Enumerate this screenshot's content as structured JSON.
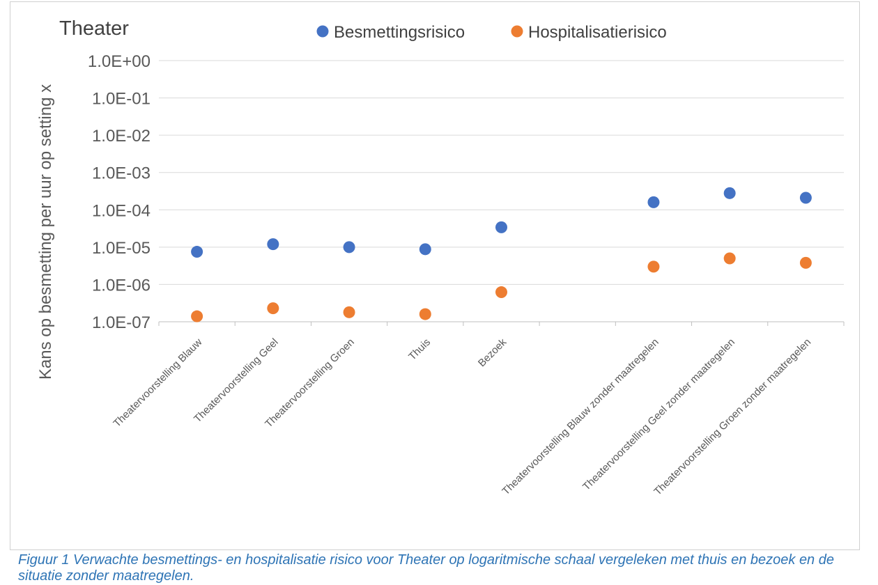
{
  "chart_data": {
    "type": "scatter",
    "title": "Theater",
    "ylabel": "Kans op besmetting per uur op setting x",
    "xlabel": "",
    "yscale": "log",
    "ylim": [
      1e-07,
      1
    ],
    "yticks": [
      {
        "value": 1,
        "label": "1.0E+00"
      },
      {
        "value": 0.1,
        "label": "1.0E-01"
      },
      {
        "value": 0.01,
        "label": "1.0E-02"
      },
      {
        "value": 0.001,
        "label": "1.0E-03"
      },
      {
        "value": 0.0001,
        "label": "1.0E-04"
      },
      {
        "value": 1e-05,
        "label": "1.0E-05"
      },
      {
        "value": 1e-06,
        "label": "1.0E-06"
      },
      {
        "value": 1e-07,
        "label": "1.0E-07"
      }
    ],
    "categories": [
      "Theatervoorstelling Blauw",
      "Theatervoorstelling Geel",
      "Theatervoorstelling Groen",
      "Thuis",
      "Bezoek",
      "",
      "Theatervoorstelling Blauw zonder maatregelen",
      "Theatervoorstelling Geel zonder maatregelen",
      "Theatervoorstelling Groen zonder maatregelen"
    ],
    "grid": true,
    "legend_position": "top",
    "series": [
      {
        "name": "Besmettingsrisico",
        "color": "#4472c4",
        "values": [
          7.5e-06,
          1.2e-05,
          1e-05,
          8.8e-06,
          3.4e-05,
          null,
          0.00016,
          0.00028,
          0.00021
        ]
      },
      {
        "name": "Hospitalisatierisico",
        "color": "#ed7d31",
        "values": [
          1.4e-07,
          2.3e-07,
          1.8e-07,
          1.6e-07,
          6.2e-07,
          null,
          3e-06,
          5e-06,
          3.8e-06
        ]
      }
    ]
  },
  "caption": "Figuur 1 Verwachte besmettings- en hospitalisatie risico voor Theater op logaritmische schaal vergeleken met thuis en bezoek en de situatie zonder maatregelen."
}
